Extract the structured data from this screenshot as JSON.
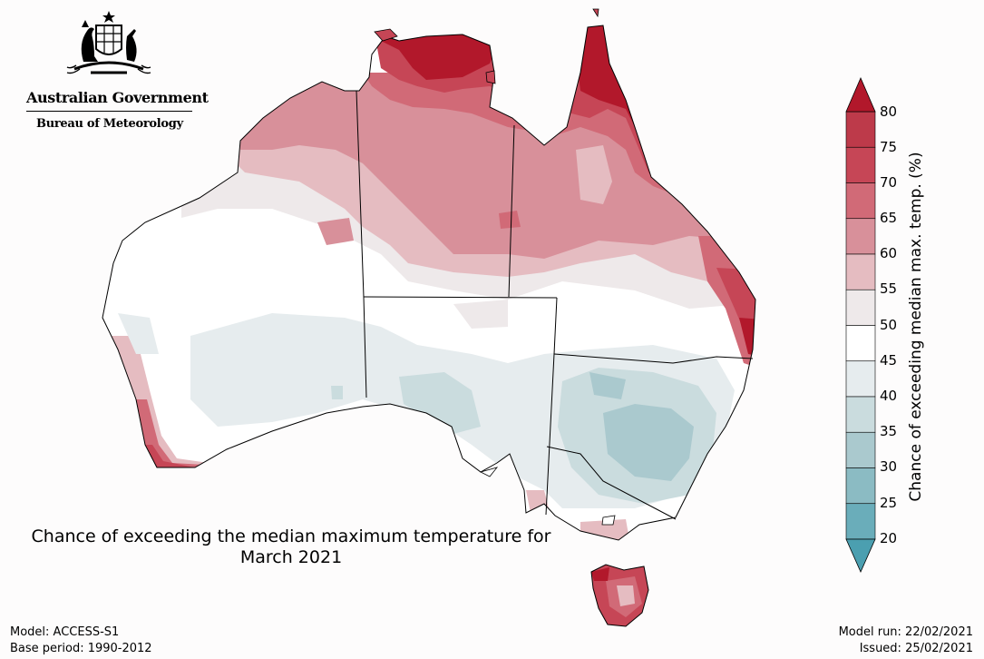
{
  "logo": {
    "government": "Australian Government",
    "agency": "Bureau of Meteorology"
  },
  "map": {
    "title_line1": "Chance of exceeding the median maximum temperature for",
    "title_line2": "March 2021"
  },
  "legend": {
    "label": "Chance of exceeding median max. temp. (%)",
    "ticks": [
      "80",
      "75",
      "70",
      "65",
      "60",
      "55",
      "50",
      "45",
      "40",
      "35",
      "30",
      "25",
      "20"
    ],
    "colors": {
      "above_75": "#b2182b",
      "70_75": "#c64656",
      "65_70": "#d16a77",
      "60_65": "#d8909a",
      "55_60": "#e5bcc1",
      "50_55": "#eee9ea",
      "45_50": "#ffffff",
      "40_45": "#e6ecee",
      "35_40": "#cadcde",
      "30_35": "#aac9ce",
      "25_30": "#8bbbc3",
      "20_25": "#6aadba",
      "below_20": "#4b9fb0"
    }
  },
  "footer": {
    "model": "Model: ACCESS-S1",
    "base_period": "Base period: 1990-2012",
    "model_run": "Model run: 22/02/2021",
    "issued": "Issued: 25/02/2021"
  }
}
